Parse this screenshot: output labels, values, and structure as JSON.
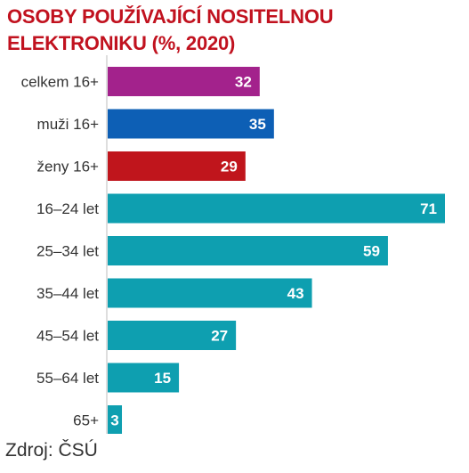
{
  "title_line1": "OSOBY POUŽÍVAJÍCÍ NOSITELNOU",
  "title_line2": "ELEKTRONIKU (%, 2020)",
  "source": "Zdroj: ČSÚ",
  "chart_data": {
    "type": "bar",
    "orientation": "horizontal",
    "categories": [
      "celkem 16+",
      "muži 16+",
      "ženy 16+",
      "16–24 let",
      "25–34 let",
      "35–44 let",
      "45–54 let",
      "55–64 let",
      "65+"
    ],
    "values": [
      32,
      35,
      29,
      71,
      59,
      43,
      27,
      15,
      3
    ],
    "colors": [
      "#a3228c",
      "#0d5fb5",
      "#c0151c",
      "#0e9fb0",
      "#0e9fb0",
      "#0e9fb0",
      "#0e9fb0",
      "#0e9fb0",
      "#0e9fb0"
    ],
    "data_labels": true,
    "xlim": [
      0,
      71
    ]
  }
}
